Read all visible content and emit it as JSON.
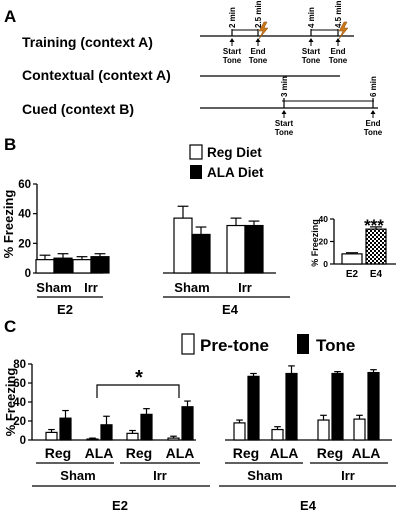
{
  "panelA": {
    "label": "A",
    "rows": {
      "training": "Training (context A)",
      "contextual": "Contextual (context A)",
      "cued": "Cued (context B)"
    },
    "training_marks": [
      {
        "time": "2 min",
        "event": [
          "Start",
          "Tone"
        ]
      },
      {
        "time": "2.5 min",
        "event": [
          "End",
          "Tone"
        ]
      },
      {
        "time": "4 min",
        "event": [
          "Start",
          "Tone"
        ]
      },
      {
        "time": "4.5 min",
        "event": [
          "End",
          "Tone"
        ]
      }
    ],
    "cued_marks": [
      {
        "time": "3 min",
        "event": [
          "Start",
          "Tone"
        ]
      },
      {
        "time": "6 min",
        "event": [
          "End",
          "Tone"
        ]
      }
    ]
  },
  "panelB_label": "B",
  "panelC_label": "C",
  "chart_data": [
    {
      "type": "bar",
      "panel": "B main",
      "ylabel": "% Freezing",
      "ylim": [
        0,
        60
      ],
      "yticks": [
        "0",
        "20",
        "40",
        "60"
      ],
      "legend_position": "top-right",
      "series": [
        {
          "name": "Reg Diet",
          "color": "#ffffff",
          "values": [
            9,
            9,
            37,
            32
          ],
          "errors": [
            3,
            2,
            8,
            5
          ]
        },
        {
          "name": "ALA Diet",
          "color": "#000000",
          "values": [
            10,
            11,
            26,
            32
          ],
          "errors": [
            3,
            2,
            5,
            3
          ]
        }
      ],
      "categories": [
        "Sham",
        "Irr",
        "Sham",
        "Irr"
      ],
      "groups": [
        "E2",
        "E4"
      ]
    },
    {
      "type": "bar",
      "panel": "B inset",
      "ylabel": "% Freezing",
      "ylim": [
        0,
        40
      ],
      "yticks": [
        "0",
        "20",
        "40"
      ],
      "categories": [
        "E2",
        "E4"
      ],
      "values": [
        9,
        31
      ],
      "errors": [
        1,
        2
      ],
      "fills": [
        "white",
        "checkered"
      ],
      "annotation": "***"
    },
    {
      "type": "bar",
      "panel": "C",
      "ylabel": "% Freezing",
      "ylim": [
        0,
        80
      ],
      "yticks": [
        "0",
        "20",
        "40",
        "60",
        "80"
      ],
      "legend_position": "top-right",
      "series": [
        {
          "name": "Pre-tone",
          "color": "#ffffff",
          "values": [
            8,
            1,
            7,
            2,
            18,
            11,
            21,
            22
          ],
          "errors": [
            3,
            1,
            3,
            2,
            3,
            3,
            5,
            4
          ]
        },
        {
          "name": "Tone",
          "color": "#000000",
          "values": [
            23,
            16,
            27,
            35,
            67,
            70,
            70,
            71
          ],
          "errors": [
            8,
            9,
            6,
            6,
            3,
            8,
            2,
            3
          ]
        }
      ],
      "categories": [
        "Reg",
        "ALA",
        "Reg",
        "ALA",
        "Reg",
        "ALA",
        "Reg",
        "ALA"
      ],
      "treatments": [
        "Sham",
        "Irr",
        "Sham",
        "Irr"
      ],
      "groups": [
        "E2",
        "E4"
      ],
      "significance": "*"
    }
  ]
}
